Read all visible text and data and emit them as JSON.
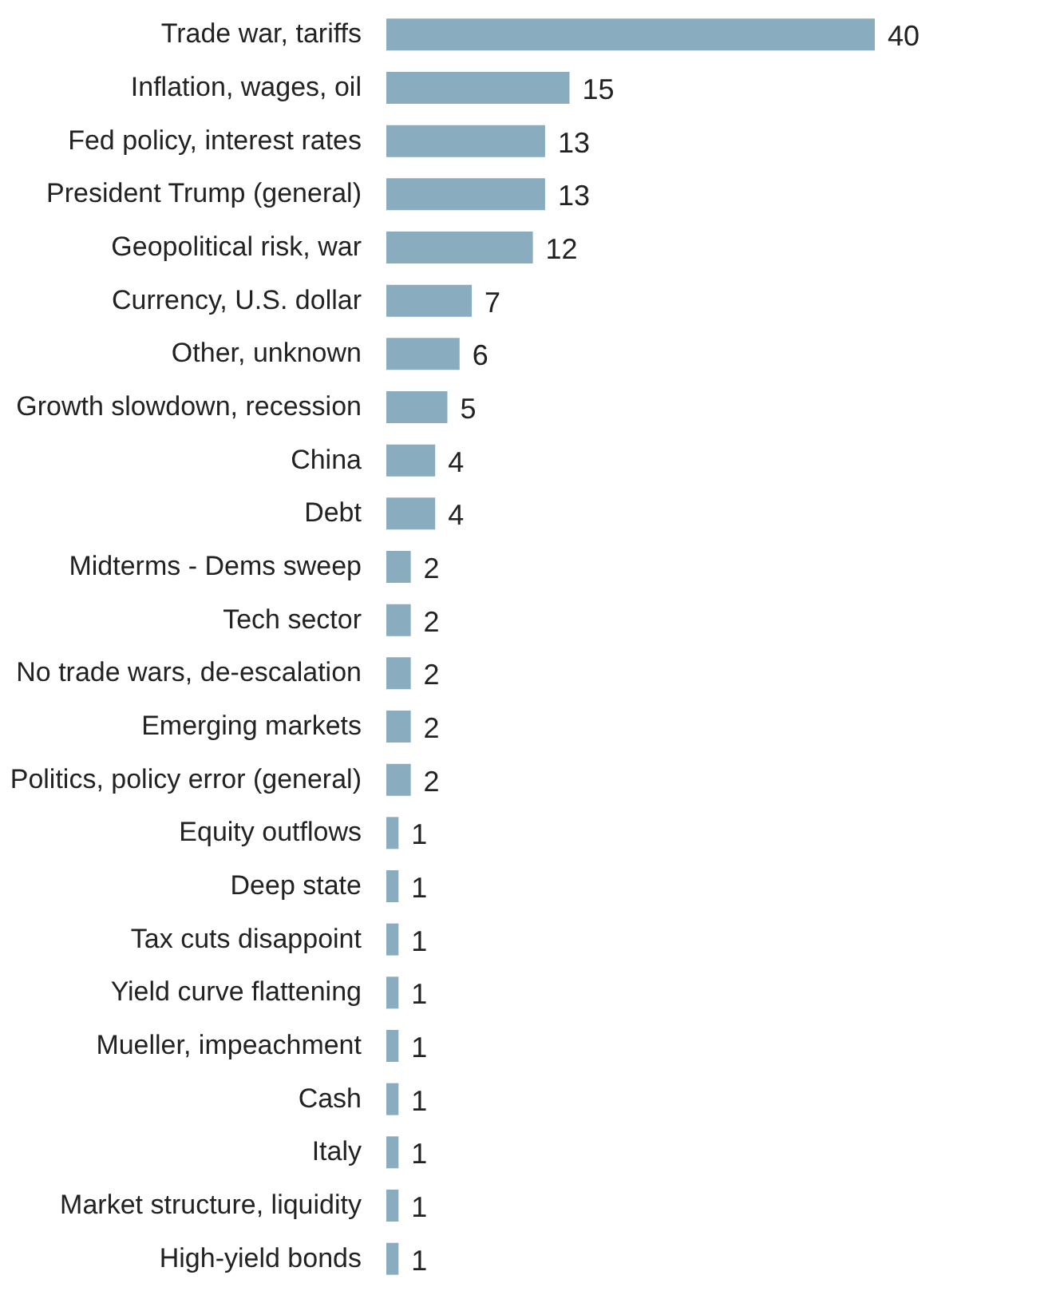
{
  "chart_data": {
    "type": "bar",
    "orientation": "horizontal",
    "data_labels": true,
    "color": "#8aacbf",
    "categories": [
      "Trade war, tariffs",
      "Inflation, wages, oil",
      "Fed policy, interest rates",
      "President Trump (general)",
      "Geopolitical risk, war",
      "Currency, U.S. dollar",
      "Other, unknown",
      "Growth slowdown, recession",
      "China",
      "Debt",
      "Midterms - Dems sweep",
      "Tech sector",
      "No trade wars, de-escalation",
      "Emerging markets",
      "Politics, policy error (general)",
      "Equity outflows",
      "Deep state",
      "Tax cuts disappoint",
      "Yield curve flattening",
      "Mueller, impeachment",
      "Cash",
      "Italy",
      "Market structure, liquidity",
      "High-yield bonds"
    ],
    "values": [
      40,
      15,
      13,
      13,
      12,
      7,
      6,
      5,
      4,
      4,
      2,
      2,
      2,
      2,
      2,
      1,
      1,
      1,
      1,
      1,
      1,
      1,
      1,
      1
    ]
  }
}
